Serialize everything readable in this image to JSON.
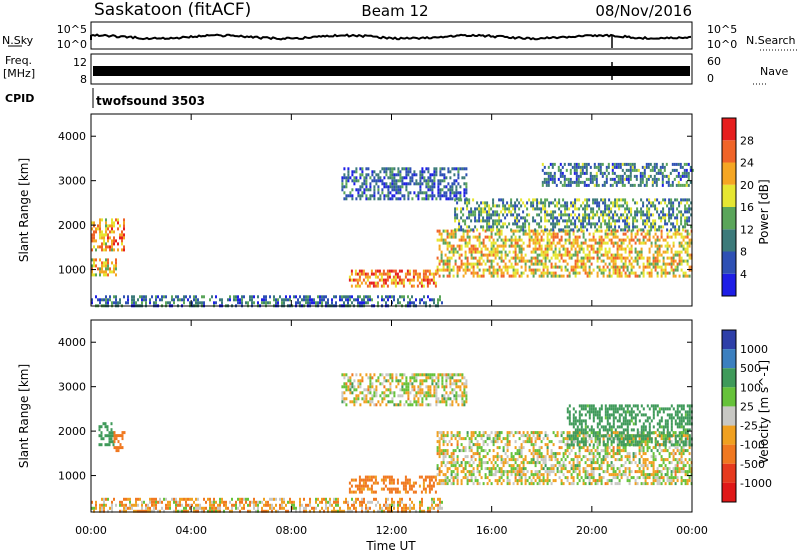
{
  "header": {
    "station": "Saskatoon (fitACF)",
    "beam": "Beam 12",
    "date": "08/Nov/2016"
  },
  "noise_panel": {
    "left_label": "N.Sky",
    "right_label": "N.Search",
    "left_ticks": [
      "10^5",
      "10^0"
    ],
    "right_ticks": [
      "10^5",
      "10^0"
    ]
  },
  "freq_panel": {
    "left_label_1": "Freq.",
    "left_label_2": "[MHz]",
    "right_label": "Nave",
    "left_ticks": [
      "12",
      "8"
    ],
    "right_ticks": [
      "60",
      "0"
    ]
  },
  "cpid": {
    "label": "CPID",
    "program": "twofsound 3503"
  },
  "time_axis": {
    "label": "Time UT",
    "ticks": [
      "00:00",
      "04:00",
      "08:00",
      "12:00",
      "16:00",
      "20:00",
      "00:00"
    ]
  },
  "range_axis": {
    "label": "Slant Range [km]",
    "ticks": [
      "1000",
      "2000",
      "3000",
      "4000"
    ]
  },
  "power_colorbar": {
    "label": "Power [dB]",
    "ticks": [
      "4",
      "8",
      "12",
      "16",
      "20",
      "24",
      "28"
    ],
    "colors": [
      "#1e1ee6",
      "#2e50b4",
      "#3c7a7a",
      "#5aa55a",
      "#e6e632",
      "#f5a623",
      "#f06428",
      "#e61e1e"
    ]
  },
  "velocity_colorbar": {
    "label": "Velocity [m s^-1]",
    "ticks": [
      "1000",
      "500",
      "100",
      "25",
      "-25",
      "-100",
      "-500",
      "-1000"
    ],
    "colors": [
      "#2e3fa8",
      "#3b7fbf",
      "#3f9a5a",
      "#66c23a",
      "#c8c8c4",
      "#f0a020",
      "#f07820",
      "#e63a1e",
      "#e01818"
    ]
  },
  "chart_data": [
    {
      "type": "heatmap",
      "title": "Power",
      "xlabel": "Time UT",
      "ylabel": "Slant Range [km]",
      "xlim": [
        0,
        24
      ],
      "ylim": [
        180,
        4500
      ],
      "colorbar": {
        "label": "Power [dB]",
        "range": [
          0,
          32
        ]
      },
      "patches": [
        {
          "t": [
            0.0,
            1.3
          ],
          "r": [
            1450,
            2150
          ],
          "power": 22
        },
        {
          "t": [
            0.0,
            1.0
          ],
          "r": [
            850,
            1250
          ],
          "power": 20
        },
        {
          "t": [
            0.0,
            14.0
          ],
          "r": [
            180,
            420
          ],
          "power": 8
        },
        {
          "t": [
            10.3,
            13.8
          ],
          "r": [
            650,
            1000
          ],
          "power": 24
        },
        {
          "t": [
            10.0,
            15.0
          ],
          "r": [
            2600,
            3300
          ],
          "power": 8
        },
        {
          "t": [
            13.8,
            24.0
          ],
          "r": [
            850,
            1900
          ],
          "power": 20
        },
        {
          "t": [
            14.5,
            24.0
          ],
          "r": [
            1900,
            2600
          ],
          "power": 12
        },
        {
          "t": [
            18.0,
            24.0
          ],
          "r": [
            2900,
            3400
          ],
          "power": 10
        }
      ]
    },
    {
      "type": "heatmap",
      "title": "Velocity",
      "xlabel": "Time UT",
      "ylabel": "Slant Range [km]",
      "xlim": [
        0,
        24
      ],
      "ylim": [
        180,
        4500
      ],
      "colorbar": {
        "label": "Velocity [m s^-1]",
        "range": [
          -1000,
          1000
        ]
      },
      "patches": [
        {
          "t": [
            0.3,
            0.9
          ],
          "r": [
            1700,
            2200
          ],
          "velocity": 300
        },
        {
          "t": [
            0.9,
            1.3
          ],
          "r": [
            1550,
            2000
          ],
          "velocity": -300
        },
        {
          "t": [
            0.0,
            14.0
          ],
          "r": [
            180,
            500
          ],
          "velocity": -60
        },
        {
          "t": [
            10.3,
            13.8
          ],
          "r": [
            650,
            1000
          ],
          "velocity": -150
        },
        {
          "t": [
            10.0,
            15.0
          ],
          "r": [
            2600,
            3300
          ],
          "velocity": 0
        },
        {
          "t": [
            13.8,
            24.0
          ],
          "r": [
            850,
            2000
          ],
          "velocity": 0
        },
        {
          "t": [
            19.0,
            24.0
          ],
          "r": [
            1700,
            2600
          ],
          "velocity": 200
        }
      ]
    }
  ]
}
